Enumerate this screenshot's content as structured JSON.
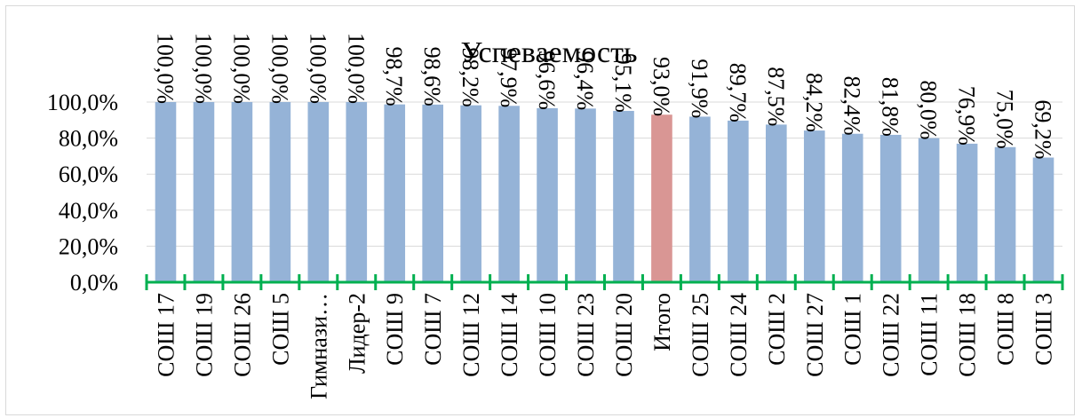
{
  "chart_data": {
    "type": "bar",
    "title": "Успеваемость",
    "categories": [
      "СОШ 17",
      "СОШ 19",
      "СОШ 26",
      "СОШ 5",
      "Гимнази…",
      "Лидер-2",
      "СОШ 9",
      "СОШ 7",
      "СОШ 12",
      "СОШ 14",
      "СОШ 10",
      "СОШ 23",
      "СОШ 20",
      "Итого",
      "СОШ 25",
      "СОШ 24",
      "СОШ 2",
      "СОШ 27",
      "СОШ 1",
      "СОШ 22",
      "СОШ 11",
      "СОШ 18",
      "СОШ 8",
      "СОШ 3"
    ],
    "values": [
      100.0,
      100.0,
      100.0,
      100.0,
      100.0,
      100.0,
      98.7,
      98.6,
      98.2,
      97.9,
      96.6,
      96.4,
      95.1,
      93.0,
      91.9,
      89.7,
      87.5,
      84.2,
      82.4,
      81.8,
      80.0,
      76.9,
      75.0,
      69.2
    ],
    "data_labels": [
      "100,0%",
      "100,0%",
      "100,0%",
      "100,0%",
      "100,0%",
      "100,0%",
      "98,7%",
      "98,6%",
      "98,2%",
      "97,9%",
      "96,6%",
      "96,4%",
      "95,1%",
      "93,0%",
      "91,9%",
      "89,7%",
      "87,5%",
      "84,2%",
      "82,4%",
      "81,8%",
      "80,0%",
      "76,9%",
      "75,0%",
      "69,2%"
    ],
    "y_ticks": [
      "0,0%",
      "20,0%",
      "40,0%",
      "60,0%",
      "80,0%",
      "100,0%"
    ],
    "ylim": [
      0,
      100
    ],
    "highlight_category": "Итого",
    "colors": {
      "bar": "#95b3d7",
      "highlight": "#d99694",
      "axis": "#00b050",
      "grid": "#d9d9d9"
    },
    "grid": true,
    "legend": "none"
  }
}
